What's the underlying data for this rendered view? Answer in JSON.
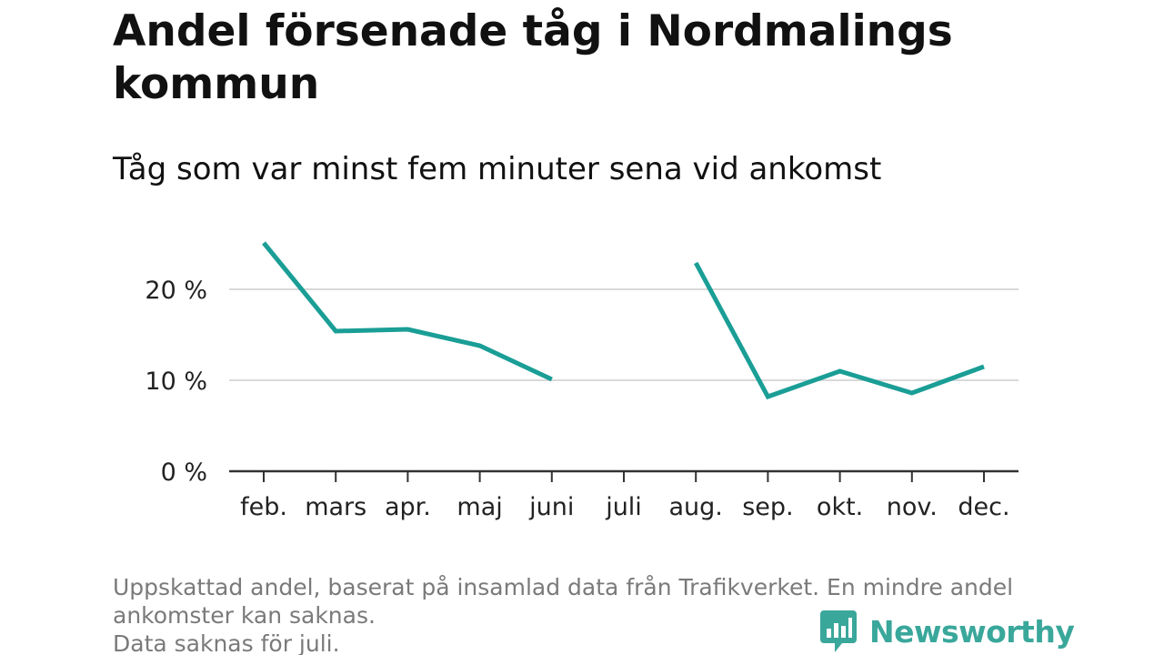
{
  "title": "Andel försenade tåg i Nordmalings kommun",
  "subtitle": "Tåg som var minst fem minuter sena vid ankomst",
  "footnote": {
    "line1": "Uppskattad andel, baserat på insamlad data från Trafikverket. En mindre andel",
    "line2": "ankomster kan saknas.",
    "line3": "Data saknas för juli."
  },
  "logo": {
    "text": "Newsworthy",
    "icon": "bar-chart-speech-bubble-icon",
    "color": "#3aa79b"
  },
  "colors": {
    "line": "#1a9e96",
    "grid": "#d9d9d9",
    "axis": "#333333"
  },
  "chart_data": {
    "type": "line",
    "title": "Andel försenade tåg i Nordmalings kommun",
    "subtitle": "Tåg som var minst fem minuter sena vid ankomst",
    "categories": [
      "feb.",
      "mars",
      "apr.",
      "maj",
      "juni",
      "juli",
      "aug.",
      "sep.",
      "okt.",
      "nov.",
      "dec."
    ],
    "series": [
      {
        "values": [
          25.1,
          15.4,
          15.6,
          13.8,
          10.1,
          null,
          22.9,
          8.2,
          11.0,
          8.6,
          11.5
        ]
      }
    ],
    "y_ticks": [
      0,
      10,
      20
    ],
    "y_tick_labels": [
      "0 %",
      "10 %",
      "20 %"
    ],
    "ylim": [
      0,
      25.5
    ],
    "grid": true,
    "legend": "none"
  }
}
